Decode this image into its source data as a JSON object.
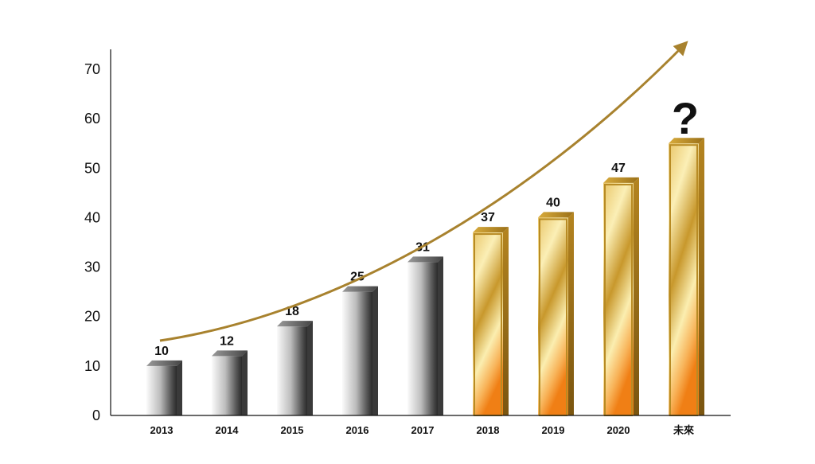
{
  "chart_data": {
    "type": "bar",
    "categories": [
      "2013",
      "2014",
      "2015",
      "2016",
      "2017",
      "2018",
      "2019",
      "2020",
      "未來"
    ],
    "values": [
      10,
      12,
      18,
      25,
      31,
      37,
      40,
      47,
      null
    ],
    "data_labels": [
      "10",
      "12",
      "18",
      "25",
      "31",
      "37",
      "40",
      "47",
      "?"
    ],
    "ylim": [
      0,
      70
    ],
    "yticks": [
      0,
      10,
      20,
      30,
      40,
      50,
      60,
      70
    ],
    "grid": false,
    "legend": "none",
    "trend_arrow": true
  },
  "colors": {
    "silver_light": "#f4f4f4",
    "silver_dark": "#2a2a2a",
    "gold_light": "#fbeeb0",
    "gold_mid": "#c99a2e",
    "gold_dark": "#8a6415",
    "orange": "#f28a1e",
    "arrow": "#a8822e",
    "axis": "#111111"
  }
}
